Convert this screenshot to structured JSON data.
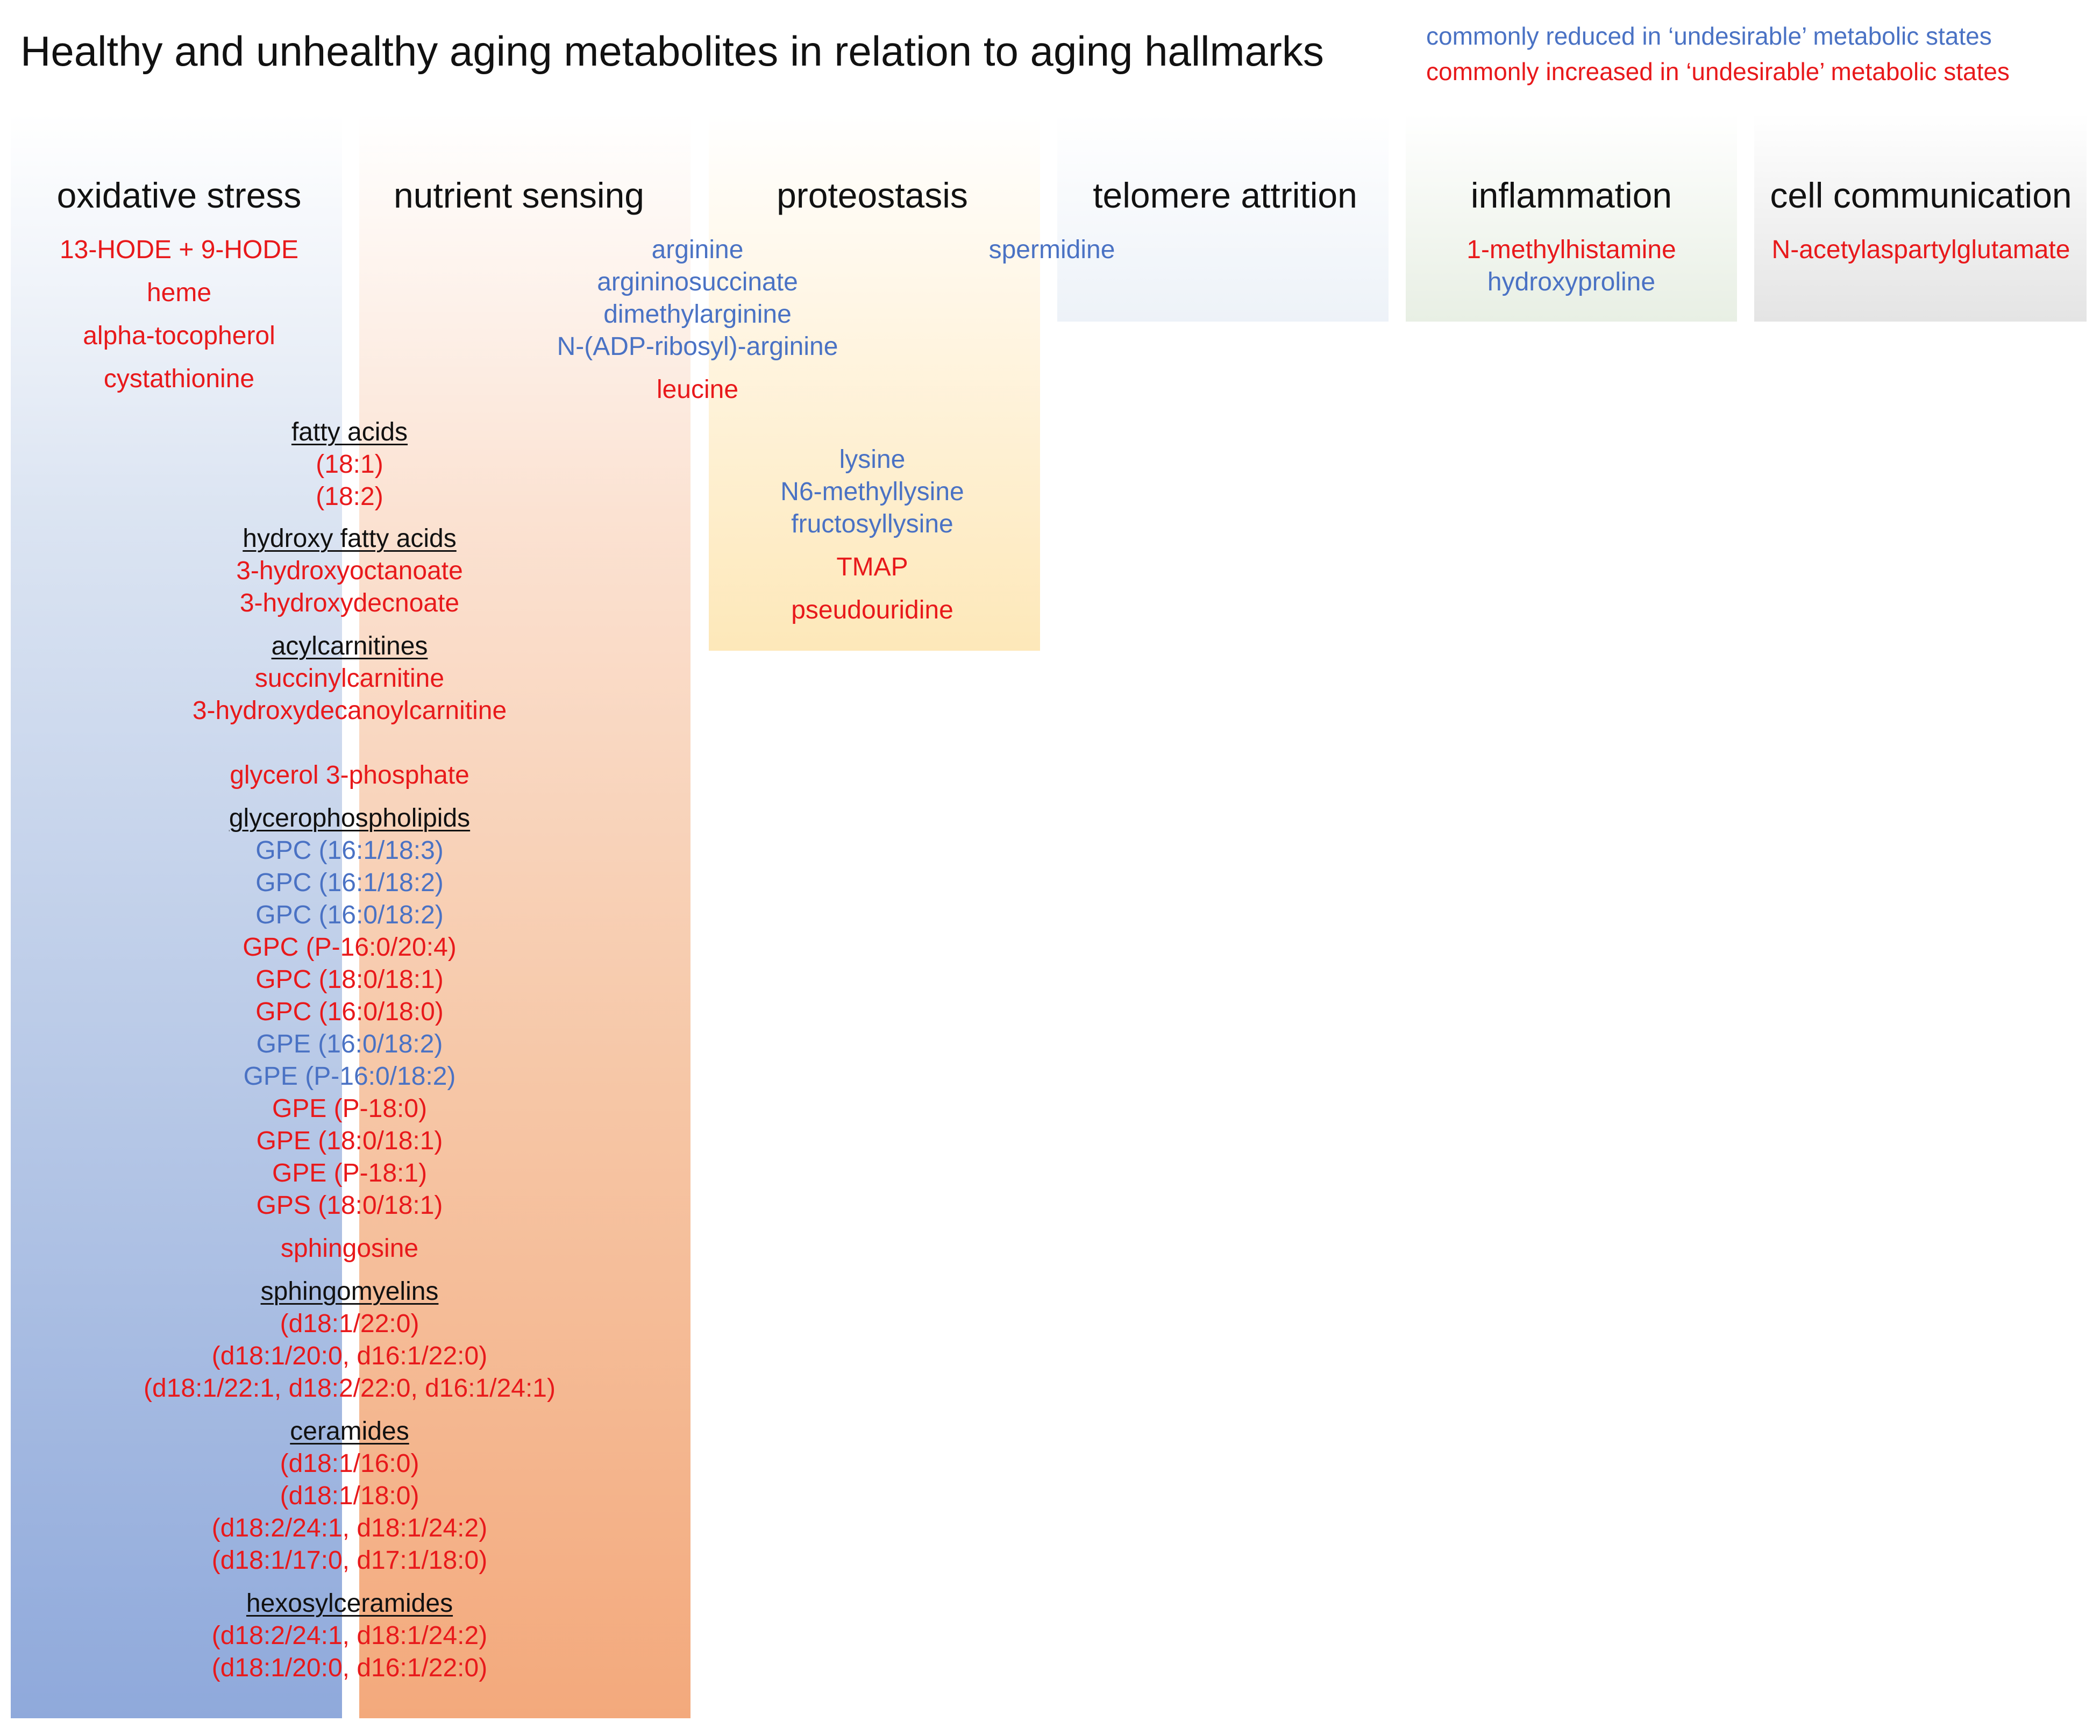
{
  "title": "Healthy and unhealthy aging metabolites in relation to aging hallmarks",
  "legend": {
    "reduced": "commonly reduced in ‘undesirable’ metabolic  states",
    "increased": "commonly increased in ‘undesirable’ metabolic  states",
    "reduced_color": "#4a72c4",
    "increased_color": "#e8191b"
  },
  "columns": {
    "oxidative_stress": "oxidative stress",
    "nutrient_sensing": "nutrient sensing",
    "proteostasis": "proteostasis",
    "telomere_attrition": "telomere attrition",
    "inflammation": "inflammation",
    "cell_communication": "cell communication"
  },
  "items": [
    {
      "id": "hode",
      "text": "13-HODE + 9-HODE",
      "status": "increased"
    },
    {
      "id": "heme",
      "text": "heme",
      "status": "increased"
    },
    {
      "id": "alpha-tocopherol",
      "text": "alpha-tocopherol",
      "status": "increased"
    },
    {
      "id": "cystathionine",
      "text": "cystathionine",
      "status": "increased"
    },
    {
      "id": "arginine",
      "text": "arginine",
      "status": "reduced"
    },
    {
      "id": "argininosuccinate",
      "text": "argininosuccinate",
      "status": "reduced"
    },
    {
      "id": "dimethylarginine",
      "text": "dimethylarginine",
      "status": "reduced"
    },
    {
      "id": "adp-ribosyl-arginine",
      "text": "N-(ADP-ribosyl)-arginine",
      "status": "reduced"
    },
    {
      "id": "leucine",
      "text": "leucine",
      "status": "increased"
    },
    {
      "id": "spermidine",
      "text": "spermidine",
      "status": "reduced"
    },
    {
      "id": "methylhistamine",
      "text": "1-methylhistamine",
      "status": "increased"
    },
    {
      "id": "hydroxyproline",
      "text": "hydroxyproline",
      "status": "reduced"
    },
    {
      "id": "naag",
      "text": "N-acetylaspartylglutamate",
      "status": "increased"
    },
    {
      "id": "lysine",
      "text": "lysine",
      "status": "reduced"
    },
    {
      "id": "n6-methyllysine",
      "text": "N6-methyllysine",
      "status": "reduced"
    },
    {
      "id": "fructosyllysine",
      "text": "fructosyllysine",
      "status": "reduced"
    },
    {
      "id": "tmap",
      "text": "TMAP",
      "status": "increased"
    },
    {
      "id": "pseudouridine",
      "text": "pseudouridine",
      "status": "increased"
    },
    {
      "id": "fatty-acids",
      "text": "fatty acids",
      "status": "group"
    },
    {
      "id": "fa-18-1",
      "text": "(18:1)",
      "status": "increased"
    },
    {
      "id": "fa-18-2",
      "text": "(18:2)",
      "status": "increased"
    },
    {
      "id": "hydroxy-fatty-acids",
      "text": "hydroxy fatty acids",
      "status": "group"
    },
    {
      "id": "hydroxyoctanoate",
      "text": "3-hydroxyoctanoate",
      "status": "increased"
    },
    {
      "id": "hydroxydecnoate",
      "text": "3-hydroxydecnoate",
      "status": "increased"
    },
    {
      "id": "acylcarnitines",
      "text": "acylcarnitines",
      "status": "group"
    },
    {
      "id": "succinylcarnitine",
      "text": "succinylcarnitine",
      "status": "increased"
    },
    {
      "id": "hydroxydecanoylcarnitine",
      "text": "3-hydroxydecanoylcarnitine",
      "status": "increased"
    },
    {
      "id": "glycerol-3-phosphate",
      "text": "glycerol 3-phosphate",
      "status": "increased"
    },
    {
      "id": "glycerophospholipids",
      "text": "glycerophospholipids",
      "status": "group"
    },
    {
      "id": "gpc-16-1-18-3",
      "text": "GPC (16:1/18:3)",
      "status": "reduced"
    },
    {
      "id": "gpc-16-1-18-2",
      "text": "GPC (16:1/18:2)",
      "status": "reduced"
    },
    {
      "id": "gpc-16-0-18-2",
      "text": "GPC (16:0/18:2)",
      "status": "reduced"
    },
    {
      "id": "gpc-p16-0-20-4",
      "text": "GPC (P-16:0/20:4)",
      "status": "increased"
    },
    {
      "id": "gpc-18-0-18-1",
      "text": "GPC (18:0/18:1)",
      "status": "increased"
    },
    {
      "id": "gpc-16-0-18-0",
      "text": "GPC (16:0/18:0)",
      "status": "increased"
    },
    {
      "id": "gpe-16-0-18-2",
      "text": "GPE (16:0/18:2)",
      "status": "reduced"
    },
    {
      "id": "gpe-p16-0-18-2",
      "text": "GPE (P-16:0/18:2)",
      "status": "reduced"
    },
    {
      "id": "gpe-p18-0",
      "text": "GPE (P-18:0)",
      "status": "increased"
    },
    {
      "id": "gpe-18-0-18-1",
      "text": "GPE (18:0/18:1)",
      "status": "increased"
    },
    {
      "id": "gpe-p18-1",
      "text": "GPE (P-18:1)",
      "status": "increased"
    },
    {
      "id": "gps-18-0-18-1",
      "text": "GPS (18:0/18:1)",
      "status": "increased"
    },
    {
      "id": "sphingosine",
      "text": "sphingosine",
      "status": "increased"
    },
    {
      "id": "sphingomyelins",
      "text": "sphingomyelins",
      "status": "group"
    },
    {
      "id": "sm-1",
      "text": "(d18:1/22:0)",
      "status": "increased"
    },
    {
      "id": "sm-2",
      "text": "(d18:1/20:0, d16:1/22:0)",
      "status": "increased"
    },
    {
      "id": "sm-3",
      "text": "(d18:1/22:1, d18:2/22:0, d16:1/24:1)",
      "status": "increased"
    },
    {
      "id": "ceramides",
      "text": "ceramides",
      "status": "group"
    },
    {
      "id": "cer-1",
      "text": "(d18:1/16:0)",
      "status": "increased"
    },
    {
      "id": "cer-2",
      "text": "(d18:1/18:0)",
      "status": "increased"
    },
    {
      "id": "cer-3",
      "text": "(d18:2/24:1, d18:1/24:2)",
      "status": "increased"
    },
    {
      "id": "cer-4",
      "text": "(d18:1/17:0, d17:1/18:0)",
      "status": "increased"
    },
    {
      "id": "hexosylceramides",
      "text": "hexosylceramides",
      "status": "group"
    },
    {
      "id": "hex-1",
      "text": "(d18:2/24:1, d18:1/24:2)",
      "status": "increased"
    },
    {
      "id": "hex-2",
      "text": "(d18:1/20:0, d16:1/22:0)",
      "status": "increased"
    }
  ]
}
